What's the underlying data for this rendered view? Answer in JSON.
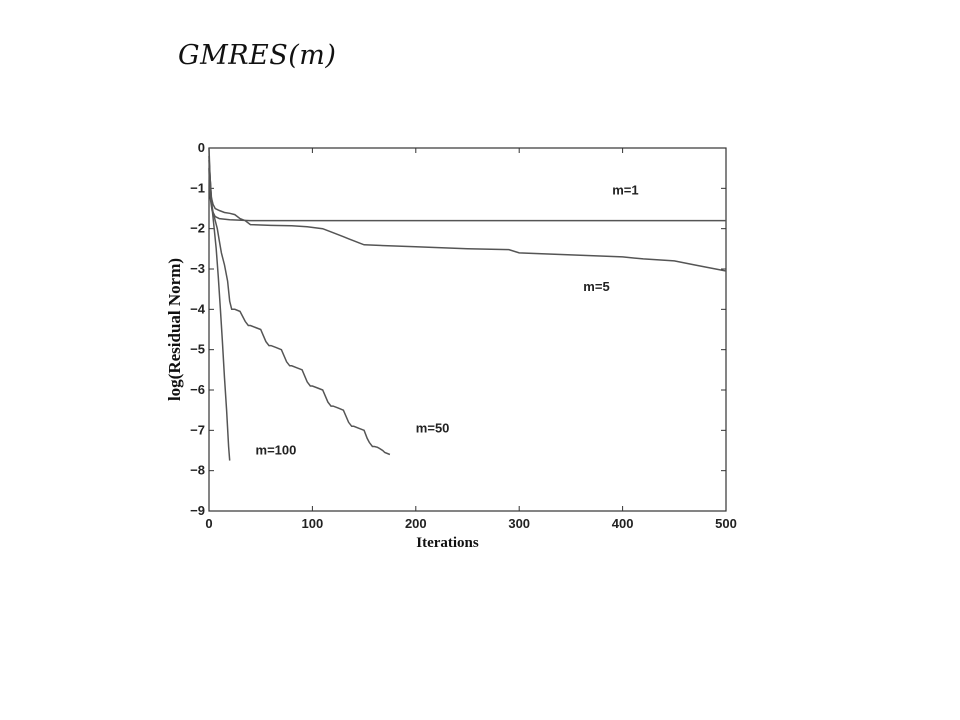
{
  "page": {
    "title": "GMRES(m)"
  },
  "chart_data": {
    "type": "line",
    "title": "",
    "xlabel": "Iterations",
    "ylabel": "log(Residual Norm)",
    "xlim": [
      0,
      500
    ],
    "ylim": [
      -9,
      0
    ],
    "xticks": [
      0,
      100,
      200,
      300,
      400,
      500
    ],
    "yticks": [
      0,
      -1,
      -2,
      -3,
      -4,
      -5,
      -6,
      -7,
      -8,
      -9
    ],
    "ytick_labels": [
      "0",
      "−1",
      "−2",
      "−3",
      "−4",
      "−5",
      "−6",
      "−7",
      "−8",
      "−9"
    ],
    "grid": false,
    "series_color": "#555555",
    "series": [
      {
        "name": "m=1",
        "x": [
          0,
          1,
          3,
          6,
          10,
          20,
          40,
          60,
          100,
          500
        ],
        "y": [
          -0.5,
          -1.2,
          -1.55,
          -1.7,
          -1.75,
          -1.78,
          -1.8,
          -1.8,
          -1.8,
          -1.8
        ]
      },
      {
        "name": "m=5",
        "x": [
          0,
          1,
          2,
          4,
          6,
          10,
          15,
          20,
          25,
          30,
          35,
          40,
          60,
          80,
          95,
          110,
          120,
          130,
          135,
          140,
          145,
          150,
          200,
          250,
          290,
          300,
          350,
          400,
          420,
          450,
          470,
          480,
          490,
          500
        ],
        "y": [
          -0.2,
          -0.7,
          -1.2,
          -1.4,
          -1.5,
          -1.55,
          -1.6,
          -1.62,
          -1.65,
          -1.75,
          -1.8,
          -1.9,
          -1.92,
          -1.93,
          -1.95,
          -2.0,
          -2.1,
          -2.2,
          -2.25,
          -2.3,
          -2.35,
          -2.4,
          -2.45,
          -2.5,
          -2.52,
          -2.6,
          -2.65,
          -2.7,
          -2.75,
          -2.8,
          -2.9,
          -2.95,
          -3.0,
          -3.05
        ]
      },
      {
        "name": "m=50",
        "x": [
          0,
          1,
          2,
          3,
          4,
          5,
          6,
          8,
          10,
          12,
          15,
          18,
          20,
          22,
          25,
          30,
          35,
          38,
          40,
          45,
          50,
          55,
          58,
          60,
          65,
          70,
          75,
          78,
          80,
          85,
          90,
          95,
          98,
          100,
          105,
          110,
          115,
          118,
          120,
          125,
          130,
          135,
          138,
          140,
          145,
          150,
          153,
          155,
          158,
          160,
          163,
          165,
          168,
          170,
          175
        ],
        "y": [
          0,
          -0.7,
          -1.2,
          -1.45,
          -1.6,
          -1.7,
          -1.8,
          -2.0,
          -2.3,
          -2.6,
          -2.9,
          -3.3,
          -3.8,
          -4.0,
          -4.0,
          -4.05,
          -4.3,
          -4.4,
          -4.4,
          -4.45,
          -4.5,
          -4.8,
          -4.9,
          -4.9,
          -4.95,
          -5.0,
          -5.3,
          -5.4,
          -5.4,
          -5.45,
          -5.5,
          -5.8,
          -5.9,
          -5.9,
          -5.95,
          -6.0,
          -6.3,
          -6.4,
          -6.4,
          -6.45,
          -6.5,
          -6.8,
          -6.9,
          -6.9,
          -6.95,
          -7.0,
          -7.2,
          -7.3,
          -7.4,
          -7.4,
          -7.42,
          -7.45,
          -7.5,
          -7.55,
          -7.6
        ]
      },
      {
        "name": "m=100",
        "x": [
          0,
          1,
          2,
          3,
          5,
          7,
          9,
          11,
          13,
          15,
          17,
          19,
          20
        ],
        "y": [
          -0.3,
          -0.7,
          -1.1,
          -1.5,
          -2.0,
          -2.5,
          -3.2,
          -4.0,
          -4.8,
          -5.7,
          -6.5,
          -7.4,
          -7.75
        ]
      }
    ],
    "labels": [
      {
        "text": "m=1",
        "x": 390,
        "y": -1.15
      },
      {
        "text": "m=5",
        "x": 362,
        "y": -3.55
      },
      {
        "text": "m=50",
        "x": 200,
        "y": -7.05
      },
      {
        "text": "m=100",
        "x": 45,
        "y": -7.6
      }
    ]
  }
}
